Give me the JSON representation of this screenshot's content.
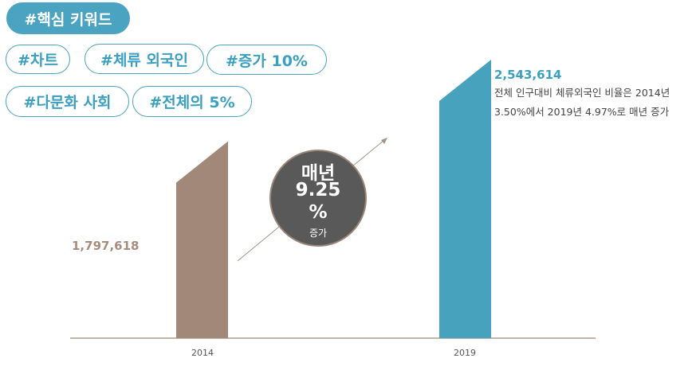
{
  "keywords": {
    "title": "#핵심 키워드",
    "tags": [
      "#차트",
      "#체류 외국인",
      "#증가 10%",
      "#다문화 사회",
      "#전체의 5%"
    ]
  },
  "colors": {
    "accent": "#4aa3c0",
    "bar_2014": "#a18878",
    "bar_2019": "#47a3bd",
    "bubble": "#595959"
  },
  "chart_data": {
    "type": "bar",
    "categories": [
      "2014",
      "2019"
    ],
    "values": [
      1797618,
      2543614
    ],
    "value_labels": [
      "1,797,618",
      "2,543,614"
    ],
    "annotation": {
      "text": [
        "전체 인구대비 체류외국인 비율은 2014년",
        "3.50%에서 2019년 4.97%로 매년 증가"
      ]
    },
    "bubble": {
      "line1": "매년",
      "line2": "9.25",
      "line3": "%",
      "line4": "증가"
    },
    "ylim": [
      0,
      2543614
    ],
    "grid": false
  }
}
